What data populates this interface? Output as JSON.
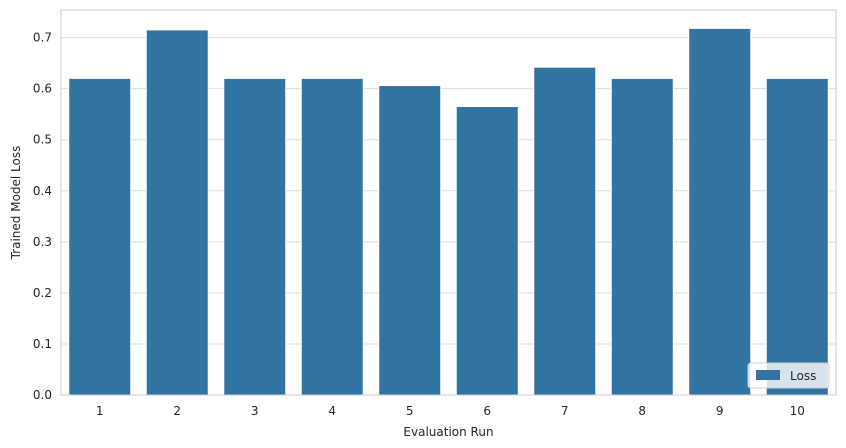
{
  "chart_data": {
    "type": "bar",
    "categories": [
      "1",
      "2",
      "3",
      "4",
      "5",
      "6",
      "7",
      "8",
      "9",
      "10"
    ],
    "series": [
      {
        "name": "Loss",
        "values": [
          0.62,
          0.715,
          0.62,
          0.62,
          0.606,
          0.565,
          0.642,
          0.62,
          0.718,
          0.62
        ],
        "color": "#3274a1"
      }
    ],
    "xlabel": "Evaluation Run",
    "ylabel": "Trained Model Loss",
    "ylim": [
      0,
      0.754
    ],
    "yticks": [
      "0.0",
      "0.1",
      "0.2",
      "0.3",
      "0.4",
      "0.5",
      "0.6",
      "0.7"
    ],
    "grid": "horizontal",
    "legend": {
      "placement": "bottom-right",
      "labels": [
        "Loss"
      ]
    },
    "colors": {
      "background": "#ffffff",
      "grid": "#dddddd",
      "spine": "#cccccc",
      "text": "#262626"
    }
  }
}
